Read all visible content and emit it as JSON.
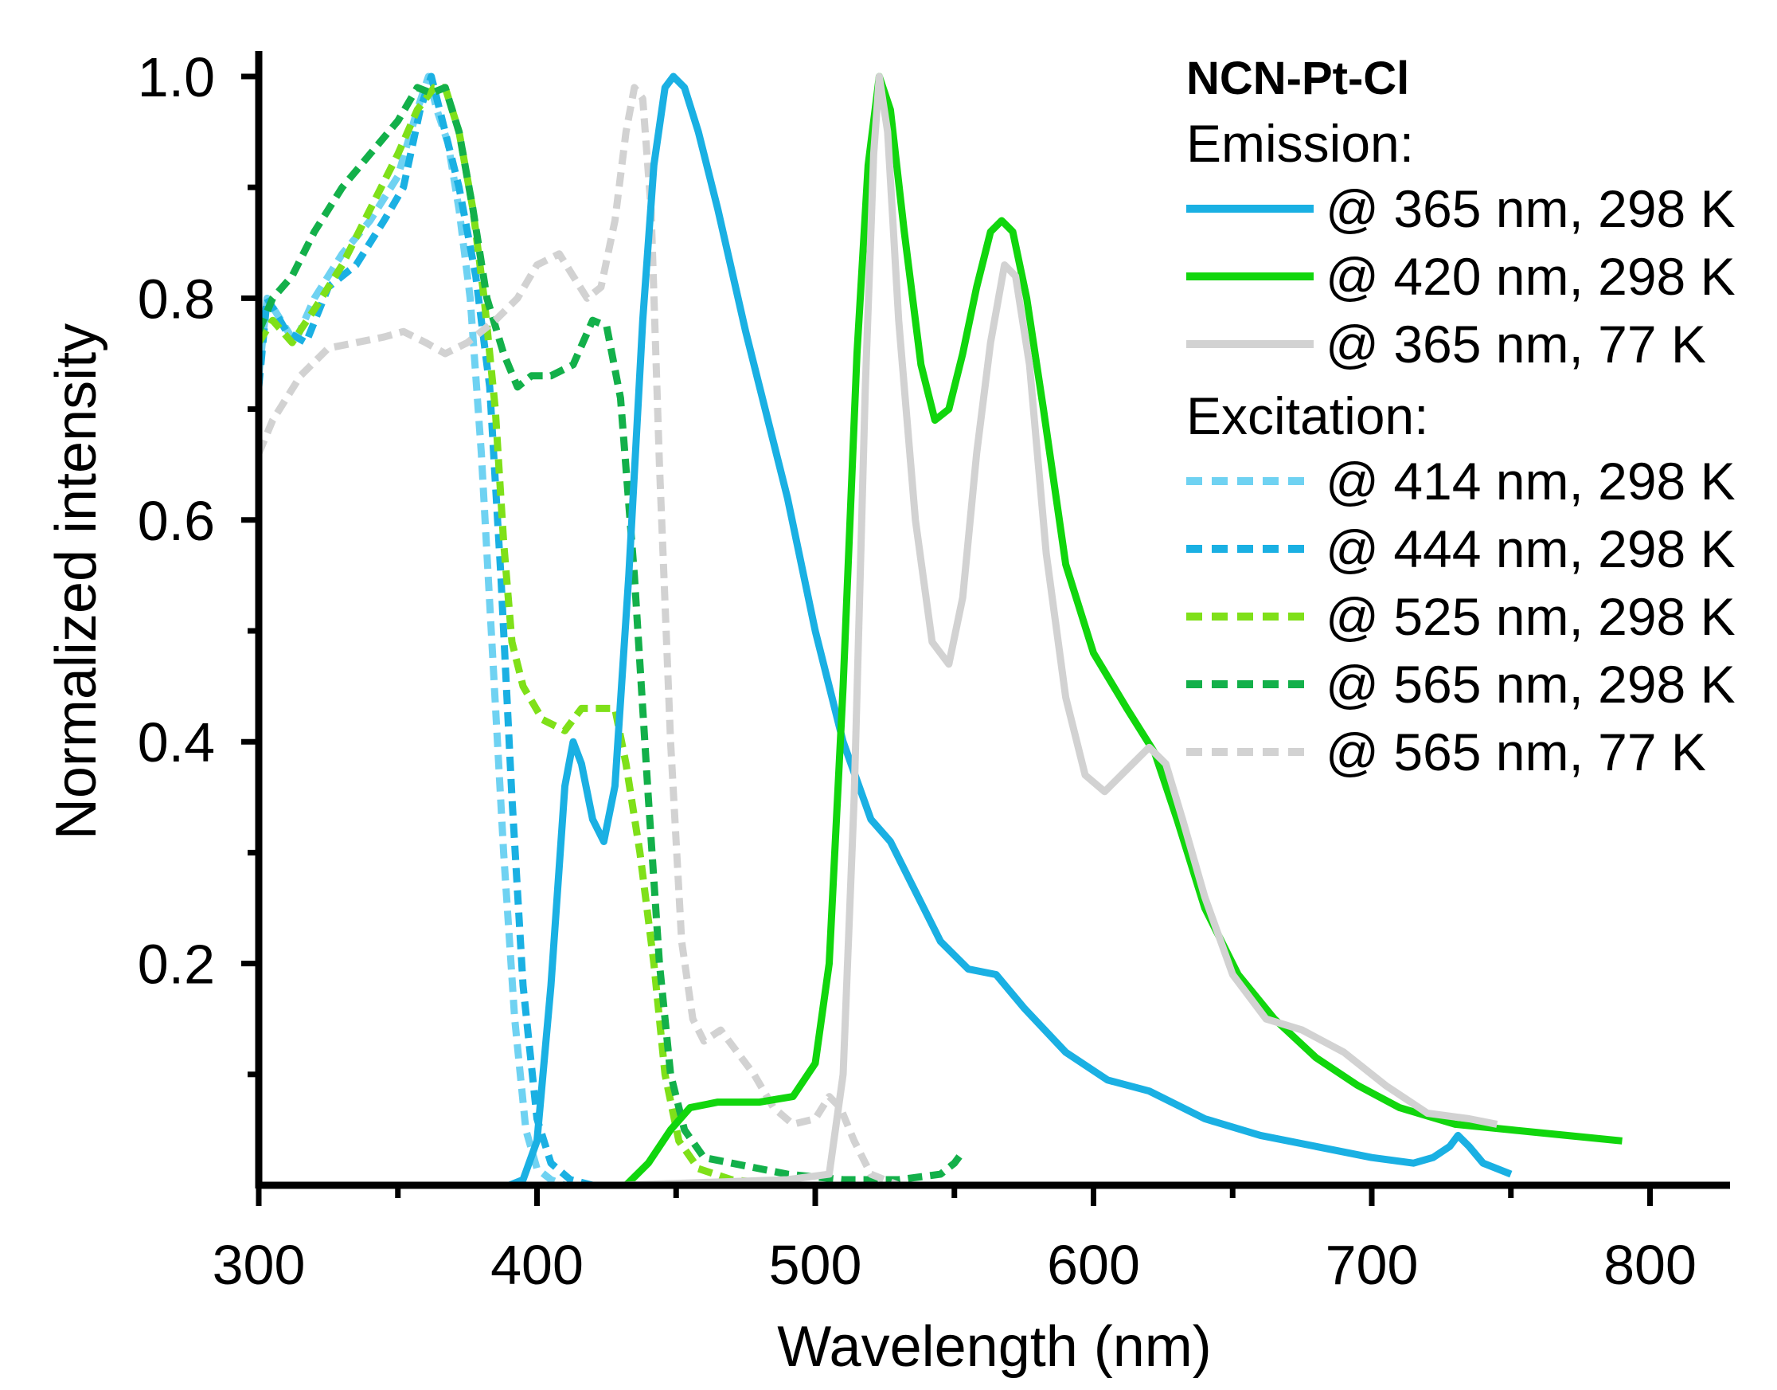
{
  "chart_data": {
    "type": "line",
    "title": "",
    "xlabel": "Wavelength (nm)",
    "ylabel": "Normalized intensity",
    "xlim": [
      300,
      830
    ],
    "ylim": [
      0,
      1.0
    ],
    "xticks": [
      {
        "value": 300,
        "label": "300"
      },
      {
        "value": 400,
        "label": "400"
      },
      {
        "value": 500,
        "label": "500"
      },
      {
        "value": 600,
        "label": "600"
      },
      {
        "value": 700,
        "label": "700"
      },
      {
        "value": 800,
        "label": "800"
      }
    ],
    "yticks": [
      {
        "value": 0.2,
        "label": "0.2"
      },
      {
        "value": 0.4,
        "label": "0.4"
      },
      {
        "value": 0.6,
        "label": "0.6"
      },
      {
        "value": 0.8,
        "label": "0.8"
      },
      {
        "value": 1.0,
        "label": "1.0"
      }
    ],
    "xminor": [
      350,
      450,
      550,
      650,
      750
    ],
    "yminor": [
      0.1,
      0.3,
      0.5,
      0.7,
      0.9
    ],
    "legend": {
      "position": "top-right",
      "title": "NCN-Pt-Cl",
      "emission_header": "Emission:",
      "excitation_header": "Excitation:"
    },
    "series": [
      {
        "name": "@ 365 nm, 298 K",
        "group": "Emission",
        "style": "solid",
        "color": "#1ab0e3",
        "points": [
          [
            390,
            0
          ],
          [
            395,
            0.005
          ],
          [
            400,
            0.04
          ],
          [
            405,
            0.18
          ],
          [
            410,
            0.36
          ],
          [
            413,
            0.4
          ],
          [
            416,
            0.38
          ],
          [
            420,
            0.33
          ],
          [
            424,
            0.31
          ],
          [
            428,
            0.36
          ],
          [
            433,
            0.55
          ],
          [
            438,
            0.78
          ],
          [
            442,
            0.92
          ],
          [
            446,
            0.99
          ],
          [
            449,
            1.0
          ],
          [
            453,
            0.99
          ],
          [
            458,
            0.95
          ],
          [
            465,
            0.88
          ],
          [
            475,
            0.77
          ],
          [
            490,
            0.62
          ],
          [
            500,
            0.5
          ],
          [
            510,
            0.4
          ],
          [
            520,
            0.33
          ],
          [
            527,
            0.31
          ],
          [
            535,
            0.27
          ],
          [
            545,
            0.22
          ],
          [
            555,
            0.195
          ],
          [
            565,
            0.19
          ],
          [
            575,
            0.16
          ],
          [
            590,
            0.12
          ],
          [
            605,
            0.095
          ],
          [
            620,
            0.085
          ],
          [
            640,
            0.06
          ],
          [
            660,
            0.045
          ],
          [
            680,
            0.035
          ],
          [
            700,
            0.025
          ],
          [
            715,
            0.02
          ],
          [
            722,
            0.025
          ],
          [
            728,
            0.035
          ],
          [
            731,
            0.045
          ],
          [
            735,
            0.035
          ],
          [
            740,
            0.02
          ],
          [
            750,
            0.01
          ]
        ]
      },
      {
        "name": "@ 420 nm, 298 K",
        "group": "Emission",
        "style": "solid",
        "color": "#11d60d",
        "points": [
          [
            432,
            0
          ],
          [
            440,
            0.02
          ],
          [
            448,
            0.05
          ],
          [
            455,
            0.07
          ],
          [
            465,
            0.075
          ],
          [
            480,
            0.075
          ],
          [
            492,
            0.08
          ],
          [
            500,
            0.11
          ],
          [
            505,
            0.2
          ],
          [
            510,
            0.45
          ],
          [
            515,
            0.75
          ],
          [
            519,
            0.92
          ],
          [
            523,
            1.0
          ],
          [
            527,
            0.97
          ],
          [
            532,
            0.86
          ],
          [
            538,
            0.74
          ],
          [
            543,
            0.69
          ],
          [
            548,
            0.7
          ],
          [
            553,
            0.75
          ],
          [
            558,
            0.81
          ],
          [
            563,
            0.86
          ],
          [
            567,
            0.87
          ],
          [
            571,
            0.86
          ],
          [
            576,
            0.8
          ],
          [
            582,
            0.7
          ],
          [
            590,
            0.56
          ],
          [
            600,
            0.48
          ],
          [
            612,
            0.43
          ],
          [
            622,
            0.39
          ],
          [
            630,
            0.33
          ],
          [
            640,
            0.25
          ],
          [
            652,
            0.19
          ],
          [
            665,
            0.15
          ],
          [
            680,
            0.115
          ],
          [
            695,
            0.09
          ],
          [
            710,
            0.07
          ],
          [
            730,
            0.055
          ],
          [
            750,
            0.05
          ],
          [
            770,
            0.045
          ],
          [
            790,
            0.04
          ]
        ]
      },
      {
        "name": "@ 365 nm, 77 K",
        "group": "Emission",
        "style": "solid",
        "color": "#d2d2d2",
        "points": [
          [
            430,
            0
          ],
          [
            490,
            0.005
          ],
          [
            505,
            0.01
          ],
          [
            510,
            0.1
          ],
          [
            514,
            0.35
          ],
          [
            518,
            0.72
          ],
          [
            521,
            0.93
          ],
          [
            523,
            1.0
          ],
          [
            526,
            0.95
          ],
          [
            530,
            0.78
          ],
          [
            536,
            0.6
          ],
          [
            542,
            0.49
          ],
          [
            548,
            0.47
          ],
          [
            553,
            0.53
          ],
          [
            558,
            0.66
          ],
          [
            563,
            0.76
          ],
          [
            568,
            0.83
          ],
          [
            572,
            0.82
          ],
          [
            577,
            0.74
          ],
          [
            583,
            0.57
          ],
          [
            590,
            0.44
          ],
          [
            597,
            0.37
          ],
          [
            604,
            0.355
          ],
          [
            612,
            0.375
          ],
          [
            620,
            0.395
          ],
          [
            626,
            0.38
          ],
          [
            632,
            0.33
          ],
          [
            640,
            0.26
          ],
          [
            650,
            0.19
          ],
          [
            662,
            0.15
          ],
          [
            675,
            0.14
          ],
          [
            690,
            0.12
          ],
          [
            705,
            0.09
          ],
          [
            720,
            0.065
          ],
          [
            735,
            0.06
          ],
          [
            745,
            0.055
          ]
        ]
      },
      {
        "name": "@ 414 nm, 298 K",
        "group": "Excitation",
        "style": "dashed",
        "color": "#6fd2f2",
        "points": [
          [
            300,
            0.73
          ],
          [
            303,
            0.8
          ],
          [
            308,
            0.78
          ],
          [
            313,
            0.76
          ],
          [
            320,
            0.8
          ],
          [
            330,
            0.84
          ],
          [
            340,
            0.87
          ],
          [
            350,
            0.91
          ],
          [
            357,
            0.97
          ],
          [
            361,
            1.0
          ],
          [
            364,
            0.97
          ],
          [
            368,
            0.94
          ],
          [
            372,
            0.88
          ],
          [
            376,
            0.8
          ],
          [
            380,
            0.66
          ],
          [
            384,
            0.48
          ],
          [
            388,
            0.3
          ],
          [
            392,
            0.15
          ],
          [
            396,
            0.05
          ],
          [
            400,
            0.015
          ],
          [
            405,
            0.005
          ],
          [
            410,
            0
          ]
        ]
      },
      {
        "name": "@ 444 nm, 298 K",
        "group": "Excitation",
        "style": "dashed",
        "color": "#1ab0e3",
        "points": [
          [
            300,
            0.72
          ],
          [
            303,
            0.8
          ],
          [
            310,
            0.77
          ],
          [
            317,
            0.76
          ],
          [
            325,
            0.81
          ],
          [
            335,
            0.83
          ],
          [
            345,
            0.87
          ],
          [
            352,
            0.9
          ],
          [
            358,
            0.97
          ],
          [
            362,
            1.0
          ],
          [
            366,
            0.96
          ],
          [
            372,
            0.9
          ],
          [
            378,
            0.82
          ],
          [
            383,
            0.72
          ],
          [
            387,
            0.55
          ],
          [
            391,
            0.35
          ],
          [
            395,
            0.18
          ],
          [
            400,
            0.06
          ],
          [
            405,
            0.02
          ],
          [
            412,
            0.005
          ],
          [
            420,
            0
          ]
        ]
      },
      {
        "name": "@ 525 nm, 298 K",
        "group": "Excitation",
        "style": "dashed",
        "color": "#7fe019",
        "points": [
          [
            300,
            0.76
          ],
          [
            305,
            0.78
          ],
          [
            312,
            0.76
          ],
          [
            320,
            0.79
          ],
          [
            330,
            0.83
          ],
          [
            340,
            0.88
          ],
          [
            350,
            0.93
          ],
          [
            357,
            0.97
          ],
          [
            363,
            0.99
          ],
          [
            367,
            0.99
          ],
          [
            372,
            0.95
          ],
          [
            377,
            0.88
          ],
          [
            381,
            0.8
          ],
          [
            385,
            0.7
          ],
          [
            388,
            0.58
          ],
          [
            391,
            0.49
          ],
          [
            395,
            0.45
          ],
          [
            402,
            0.42
          ],
          [
            410,
            0.41
          ],
          [
            416,
            0.43
          ],
          [
            422,
            0.43
          ],
          [
            428,
            0.43
          ],
          [
            432,
            0.38
          ],
          [
            437,
            0.3
          ],
          [
            442,
            0.2
          ],
          [
            446,
            0.1
          ],
          [
            451,
            0.04
          ],
          [
            458,
            0.015
          ],
          [
            470,
            0.005
          ],
          [
            490,
            0
          ]
        ]
      },
      {
        "name": "@ 565 nm, 298 K",
        "group": "Excitation",
        "style": "dashed",
        "color": "#13b04a",
        "points": [
          [
            300,
            0.77
          ],
          [
            305,
            0.8
          ],
          [
            312,
            0.82
          ],
          [
            320,
            0.86
          ],
          [
            330,
            0.9
          ],
          [
            340,
            0.93
          ],
          [
            350,
            0.96
          ],
          [
            357,
            0.99
          ],
          [
            362,
            0.985
          ],
          [
            367,
            0.99
          ],
          [
            372,
            0.95
          ],
          [
            377,
            0.88
          ],
          [
            382,
            0.8
          ],
          [
            388,
            0.75
          ],
          [
            393,
            0.72
          ],
          [
            398,
            0.73
          ],
          [
            405,
            0.73
          ],
          [
            413,
            0.74
          ],
          [
            420,
            0.78
          ],
          [
            425,
            0.775
          ],
          [
            430,
            0.71
          ],
          [
            435,
            0.55
          ],
          [
            440,
            0.35
          ],
          [
            444,
            0.2
          ],
          [
            448,
            0.1
          ],
          [
            453,
            0.05
          ],
          [
            460,
            0.025
          ],
          [
            470,
            0.02
          ],
          [
            490,
            0.01
          ],
          [
            510,
            0.005
          ],
          [
            530,
            0.005
          ],
          [
            545,
            0.01
          ],
          [
            550,
            0.02
          ],
          [
            553,
            0.03
          ]
        ]
      },
      {
        "name": "@ 565 nm, 77 K",
        "group": "Excitation",
        "style": "dashed",
        "color": "#d2d2d2",
        "points": [
          [
            300,
            0.66
          ],
          [
            305,
            0.69
          ],
          [
            315,
            0.73
          ],
          [
            325,
            0.755
          ],
          [
            335,
            0.76
          ],
          [
            345,
            0.765
          ],
          [
            352,
            0.77
          ],
          [
            360,
            0.76
          ],
          [
            367,
            0.75
          ],
          [
            375,
            0.76
          ],
          [
            385,
            0.78
          ],
          [
            393,
            0.8
          ],
          [
            400,
            0.83
          ],
          [
            408,
            0.84
          ],
          [
            413,
            0.82
          ],
          [
            418,
            0.8
          ],
          [
            423,
            0.81
          ],
          [
            428,
            0.87
          ],
          [
            432,
            0.95
          ],
          [
            435,
            0.99
          ],
          [
            438,
            0.98
          ],
          [
            441,
            0.88
          ],
          [
            444,
            0.65
          ],
          [
            448,
            0.4
          ],
          [
            452,
            0.22
          ],
          [
            456,
            0.15
          ],
          [
            460,
            0.13
          ],
          [
            466,
            0.14
          ],
          [
            472,
            0.12
          ],
          [
            478,
            0.1
          ],
          [
            485,
            0.07
          ],
          [
            492,
            0.055
          ],
          [
            500,
            0.06
          ],
          [
            505,
            0.08
          ],
          [
            509,
            0.07
          ],
          [
            514,
            0.04
          ],
          [
            520,
            0.01
          ],
          [
            530,
            0
          ]
        ]
      }
    ]
  }
}
